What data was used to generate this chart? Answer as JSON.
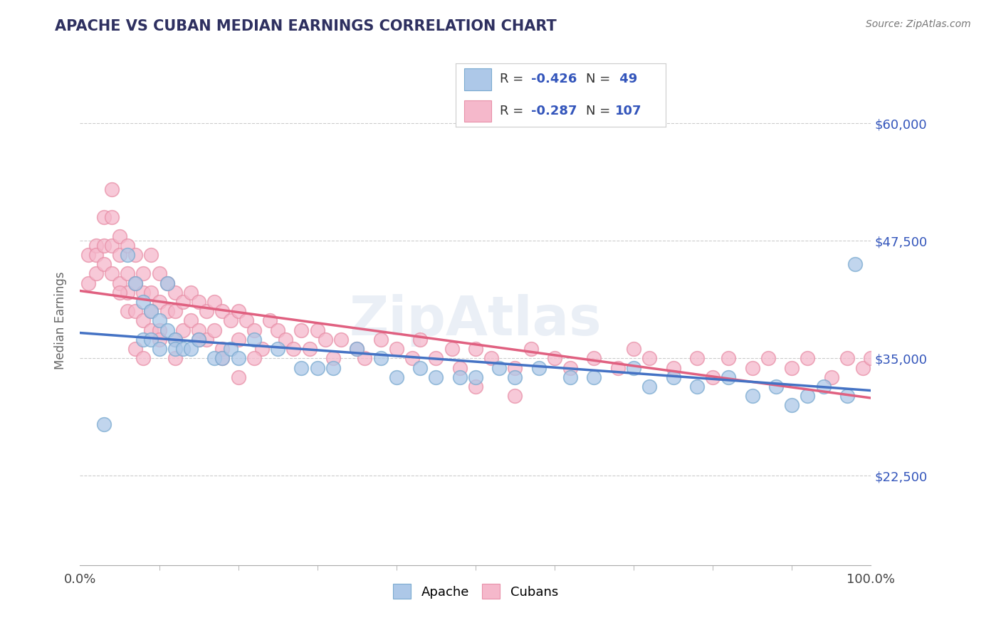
{
  "title": "APACHE VS CUBAN MEDIAN EARNINGS CORRELATION CHART",
  "source_text": "Source: ZipAtlas.com",
  "ylabel": "Median Earnings",
  "xlim": [
    0.0,
    1.0
  ],
  "ylim": [
    13000,
    65000
  ],
  "yticks": [
    22500,
    35000,
    47500,
    60000
  ],
  "ytick_labels": [
    "$22,500",
    "$35,000",
    "$47,500",
    "$60,000"
  ],
  "xtick_labels": [
    "0.0%",
    "100.0%"
  ],
  "R_apache": -0.426,
  "N_apache": 49,
  "R_cuban": -0.287,
  "N_cuban": 107,
  "apache_fill_color": "#adc8e8",
  "apache_edge_color": "#7aaad0",
  "cuban_fill_color": "#f5b8cb",
  "cuban_edge_color": "#e890a8",
  "apache_line_color": "#4472c4",
  "cuban_line_color": "#e06080",
  "title_color": "#2e3060",
  "label_color": "#3355bb",
  "source_color": "#777777",
  "background_color": "#ffffff",
  "grid_color": "#cccccc",
  "apache_scatter_x": [
    0.03,
    0.06,
    0.07,
    0.08,
    0.08,
    0.09,
    0.09,
    0.1,
    0.1,
    0.11,
    0.11,
    0.12,
    0.12,
    0.13,
    0.14,
    0.15,
    0.17,
    0.18,
    0.19,
    0.2,
    0.22,
    0.25,
    0.28,
    0.3,
    0.32,
    0.35,
    0.38,
    0.4,
    0.43,
    0.45,
    0.48,
    0.5,
    0.53,
    0.55,
    0.58,
    0.62,
    0.65,
    0.7,
    0.72,
    0.75,
    0.78,
    0.82,
    0.85,
    0.88,
    0.9,
    0.92,
    0.94,
    0.97,
    0.98
  ],
  "apache_scatter_y": [
    28000,
    46000,
    43000,
    37000,
    41000,
    37000,
    40000,
    36000,
    39000,
    38000,
    43000,
    37000,
    36000,
    36000,
    36000,
    37000,
    35000,
    35000,
    36000,
    35000,
    37000,
    36000,
    34000,
    34000,
    34000,
    36000,
    35000,
    33000,
    34000,
    33000,
    33000,
    33000,
    34000,
    33000,
    34000,
    33000,
    33000,
    34000,
    32000,
    33000,
    32000,
    33000,
    31000,
    32000,
    30000,
    31000,
    32000,
    31000,
    45000
  ],
  "cuban_scatter_x": [
    0.01,
    0.01,
    0.02,
    0.02,
    0.02,
    0.03,
    0.03,
    0.03,
    0.04,
    0.04,
    0.04,
    0.04,
    0.05,
    0.05,
    0.05,
    0.06,
    0.06,
    0.06,
    0.06,
    0.07,
    0.07,
    0.07,
    0.08,
    0.08,
    0.08,
    0.09,
    0.09,
    0.09,
    0.09,
    0.1,
    0.1,
    0.1,
    0.11,
    0.11,
    0.12,
    0.12,
    0.12,
    0.13,
    0.13,
    0.14,
    0.14,
    0.15,
    0.15,
    0.16,
    0.16,
    0.17,
    0.17,
    0.18,
    0.18,
    0.19,
    0.2,
    0.2,
    0.21,
    0.22,
    0.23,
    0.24,
    0.25,
    0.26,
    0.27,
    0.28,
    0.29,
    0.3,
    0.31,
    0.32,
    0.33,
    0.35,
    0.36,
    0.38,
    0.4,
    0.42,
    0.43,
    0.45,
    0.47,
    0.48,
    0.5,
    0.52,
    0.55,
    0.57,
    0.6,
    0.62,
    0.65,
    0.68,
    0.7,
    0.72,
    0.75,
    0.78,
    0.8,
    0.82,
    0.85,
    0.87,
    0.9,
    0.92,
    0.95,
    0.97,
    0.99,
    1.0,
    0.05,
    0.07,
    0.08,
    0.1,
    0.12,
    0.15,
    0.18,
    0.2,
    0.22,
    0.5,
    0.55
  ],
  "cuban_scatter_y": [
    46000,
    43000,
    47000,
    44000,
    46000,
    50000,
    47000,
    45000,
    53000,
    50000,
    47000,
    44000,
    46000,
    43000,
    48000,
    47000,
    44000,
    42000,
    40000,
    46000,
    43000,
    40000,
    44000,
    42000,
    39000,
    46000,
    42000,
    40000,
    38000,
    44000,
    41000,
    38000,
    43000,
    40000,
    42000,
    40000,
    37000,
    41000,
    38000,
    42000,
    39000,
    41000,
    38000,
    40000,
    37000,
    41000,
    38000,
    40000,
    36000,
    39000,
    40000,
    37000,
    39000,
    38000,
    36000,
    39000,
    38000,
    37000,
    36000,
    38000,
    36000,
    38000,
    37000,
    35000,
    37000,
    36000,
    35000,
    37000,
    36000,
    35000,
    37000,
    35000,
    36000,
    34000,
    36000,
    35000,
    34000,
    36000,
    35000,
    34000,
    35000,
    34000,
    36000,
    35000,
    34000,
    35000,
    33000,
    35000,
    34000,
    35000,
    34000,
    35000,
    33000,
    35000,
    34000,
    35000,
    42000,
    36000,
    35000,
    37000,
    35000,
    37000,
    35000,
    33000,
    35000,
    32000,
    31000
  ]
}
